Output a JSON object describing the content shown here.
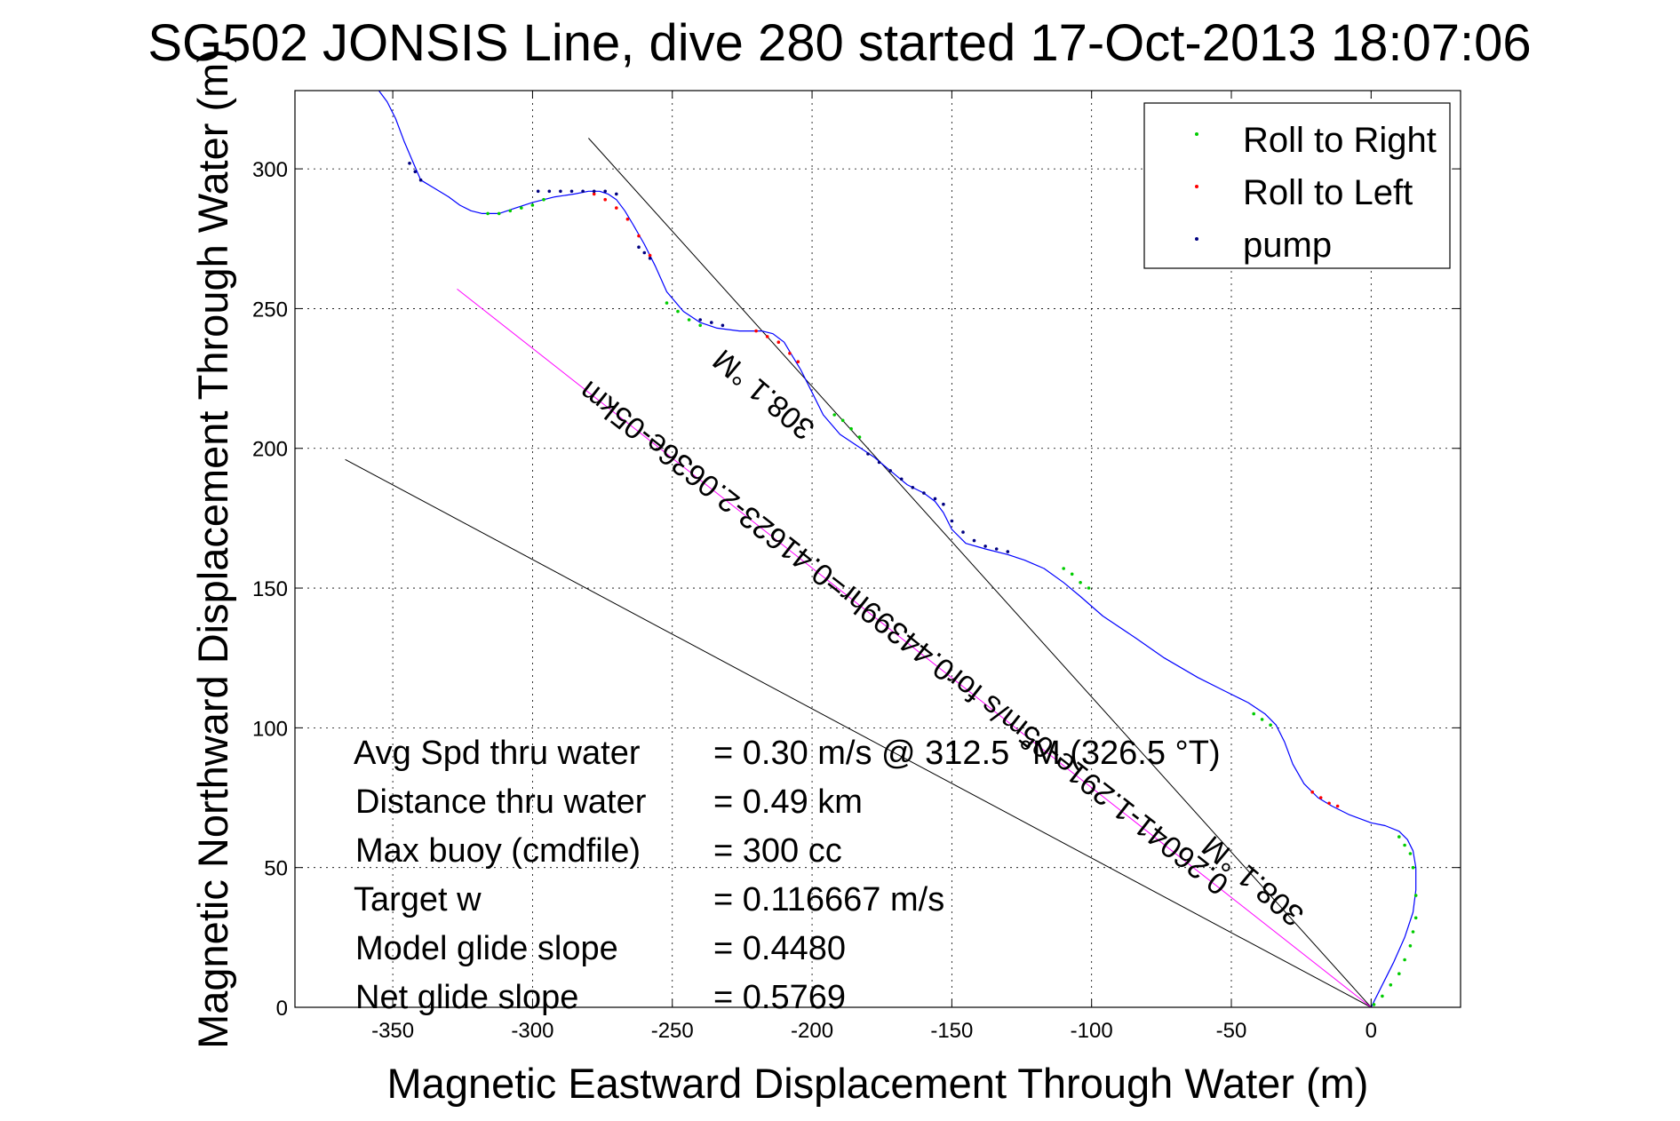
{
  "chart_data": {
    "type": "line",
    "title": "SG502 JONSIS Line, dive 280 started 17-Oct-2013 18:07:06",
    "xlabel": "Magnetic Eastward Displacement Through Water (m)",
    "ylabel": "Magnetic Northward Displacement Through Water (m)",
    "xlim": [
      -385,
      32
    ],
    "ylim": [
      0,
      328
    ],
    "xticks": [
      -350,
      -300,
      -250,
      -200,
      -150,
      -100,
      -50,
      0
    ],
    "yticks": [
      0,
      50,
      100,
      150,
      200,
      250,
      300
    ],
    "xtick_labels": [
      "-350",
      "-300",
      "-250",
      "-200",
      "-150",
      "-100",
      "-50",
      "0"
    ],
    "ytick_labels": [
      "0",
      "50",
      "100",
      "150",
      "200",
      "250",
      "300"
    ],
    "grid": true,
    "legend_position": "top-right",
    "colors": {
      "track": "#0000ff",
      "roll_right": "#00cc00",
      "roll_left": "#ff0000",
      "pump": "#000080",
      "reference": "#000000",
      "average": "#ff00ff"
    },
    "series": [
      {
        "name": "Roll to Right",
        "color": "#00cc00"
      },
      {
        "name": "Roll to Left",
        "color": "#ff0000"
      },
      {
        "name": "pump",
        "color": "#000080"
      }
    ],
    "track": {
      "x": [
        0,
        4,
        8,
        12,
        15,
        16,
        16,
        15,
        13,
        10,
        5,
        0,
        -8,
        -14,
        -19,
        -24,
        -28,
        -31,
        -34,
        -38,
        -44,
        -52,
        -62,
        -74,
        -84,
        -96,
        -104,
        -110,
        -117,
        -124,
        -130,
        -138,
        -145,
        -150,
        -153,
        -156,
        -160,
        -166,
        -172,
        -178,
        -184,
        -190,
        -196,
        -200,
        -204,
        -207,
        -210,
        -214,
        -218,
        -226,
        -234,
        -240,
        -246,
        -252,
        -256,
        -260,
        -264,
        -267,
        -270,
        -273,
        -276,
        -280,
        -285,
        -292,
        -300,
        -306,
        -312,
        -318,
        -322,
        -326,
        -330,
        -335,
        -340,
        -343,
        -346,
        -349,
        -352,
        -355
      ],
      "y": [
        0,
        8,
        16,
        25,
        34,
        42,
        50,
        56,
        60,
        63,
        65,
        66,
        69,
        72,
        75,
        80,
        87,
        95,
        101,
        105,
        109,
        113,
        118,
        125,
        132,
        140,
        147,
        152,
        157,
        160,
        162,
        164,
        166,
        171,
        177,
        181,
        184,
        187,
        192,
        197,
        201,
        205,
        212,
        220,
        228,
        233,
        238,
        241,
        242,
        242,
        243,
        245,
        249,
        256,
        265,
        273,
        280,
        285,
        289,
        291,
        292,
        292,
        291,
        290,
        288,
        286,
        284,
        284,
        285,
        287,
        290,
        293,
        296,
        303,
        310,
        318,
        324,
        328
      ]
    },
    "roll_right_points": {
      "x": [
        1,
        4,
        7,
        10,
        12,
        14,
        15,
        16,
        16,
        15,
        14,
        12,
        10,
        -36,
        -39,
        -42,
        -101,
        -104,
        -107,
        -110,
        -183,
        -186,
        -189,
        -192,
        -240,
        -244,
        -248,
        -252,
        -296,
        -300,
        -304,
        -308,
        -312,
        -316
      ],
      "y": [
        1,
        4,
        8,
        12,
        17,
        22,
        27,
        32,
        40,
        50,
        55,
        58,
        61,
        101,
        103,
        105,
        150,
        152,
        155,
        157,
        204,
        207,
        210,
        212,
        244,
        246,
        249,
        252,
        289,
        287,
        286,
        285,
        284,
        284
      ]
    },
    "roll_left_points": {
      "x": [
        -12,
        -15,
        -18,
        -21,
        -205,
        -208,
        -212,
        -216,
        -220,
        -258,
        -262,
        -266,
        -270,
        -274,
        -278
      ],
      "y": [
        72,
        73,
        75,
        77,
        231,
        234,
        238,
        240,
        242,
        269,
        276,
        282,
        286,
        289,
        291
      ]
    },
    "pump_points": {
      "x": [
        -130,
        -134,
        -138,
        -142,
        -146,
        -150,
        -153,
        -156,
        -160,
        -164,
        -168,
        -172,
        -176,
        -180,
        -232,
        -236,
        -240,
        -258,
        -260,
        -262,
        -270,
        -274,
        -278,
        -282,
        -286,
        -290,
        -294,
        -298,
        -340,
        -342,
        -344
      ],
      "y": [
        163,
        164,
        165,
        167,
        170,
        174,
        180,
        182,
        184,
        186,
        189,
        192,
        195,
        198,
        244,
        245,
        246,
        268,
        270,
        272,
        291,
        292,
        292,
        292,
        292,
        292,
        292,
        292,
        296,
        299,
        302
      ]
    },
    "reference_lines": [
      {
        "x": [
          0,
          -367
        ],
        "y": [
          0,
          196
        ]
      },
      {
        "x": [
          0,
          -280
        ],
        "y": [
          0,
          311
        ]
      }
    ],
    "average_line": {
      "x": [
        0,
        -327
      ],
      "y": [
        0,
        257
      ]
    },
    "annotations": [
      {
        "text": "308.1 °M",
        "x": -215,
        "y": 222,
        "angle": 40
      },
      {
        "text": "0.26041-1.291e-05m/s for0.44399hr=0.41623-2.0636e-05km",
        "x": -165,
        "y": 135,
        "angle": 38
      },
      {
        "text": "308.1 °M",
        "x": -40,
        "y": 48,
        "angle": 40
      }
    ],
    "stats": [
      {
        "label": "Avg Spd thru water",
        "value": "=  0.30 m/s @ 312.5 °M (326.5 °T)"
      },
      {
        "label": "Distance thru water",
        "value": "=  0.49 km"
      },
      {
        "label": "Max buoy (cmdfile)",
        "value": "= 300 cc"
      },
      {
        "label": "Target w",
        "value": "= 0.116667 m/s"
      },
      {
        "label": "Model glide slope",
        "value": "= 0.4480"
      },
      {
        "label": "Net glide slope",
        "value": "= 0.5769"
      }
    ]
  }
}
